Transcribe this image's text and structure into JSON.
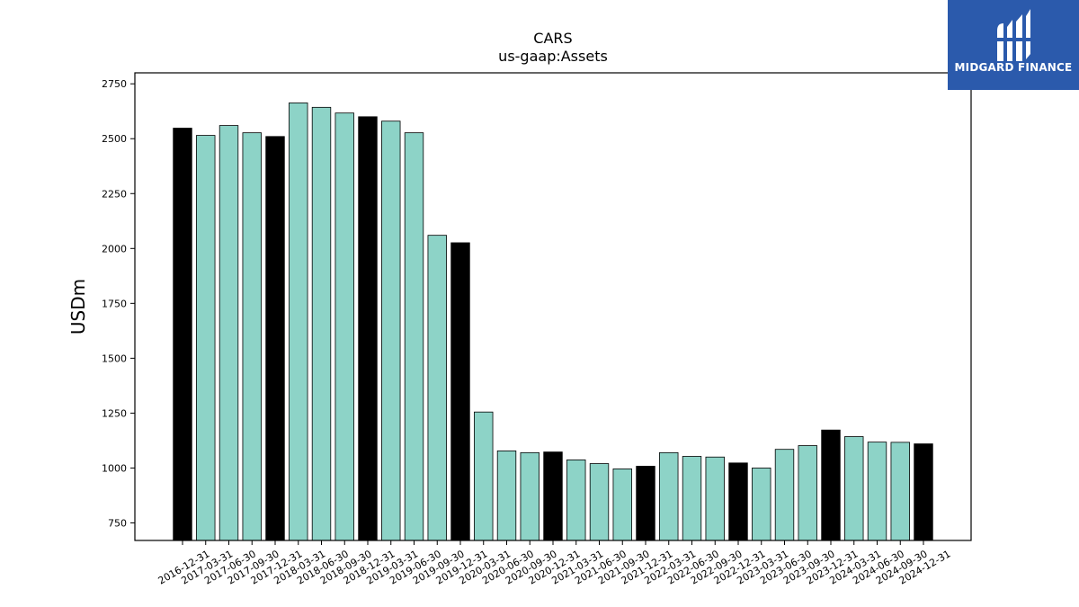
{
  "logo": {
    "text": "MIDGARD FINANCE",
    "bg_color": "#2b5aac"
  },
  "chart_data": {
    "type": "bar",
    "title": "CARS",
    "subtitle": "us-gaap:Assets",
    "xlabel": "",
    "ylabel": "USDm",
    "ylim": [
      670,
      2800
    ],
    "yticks": [
      750,
      1000,
      1250,
      1500,
      1750,
      2000,
      2250,
      2500,
      2750
    ],
    "grid": false,
    "colors": {
      "quarter": "#8dd3c7",
      "year_end": "#000000"
    },
    "categories": [
      "2016-12-31",
      "2017-03-31",
      "2017-06-30",
      "2017-09-30",
      "2017-12-31",
      "2018-03-31",
      "2018-06-30",
      "2018-09-30",
      "2018-12-31",
      "2019-03-31",
      "2019-06-30",
      "2019-09-30",
      "2019-12-31",
      "2020-03-31",
      "2020-06-30",
      "2020-09-30",
      "2020-12-31",
      "2021-03-31",
      "2021-06-30",
      "2021-09-30",
      "2021-12-31",
      "2022-03-31",
      "2022-06-30",
      "2022-09-30",
      "2022-12-31",
      "2023-03-31",
      "2023-06-30",
      "2023-09-30",
      "2023-12-31",
      "2024-03-31",
      "2024-06-30",
      "2024-09-30",
      "2024-12-31"
    ],
    "values": [
      2548,
      2515,
      2560,
      2527,
      2510,
      2663,
      2643,
      2617,
      2600,
      2580,
      2527,
      2060,
      2026,
      1255,
      1078,
      1070,
      1073,
      1037,
      1020,
      996,
      1008,
      1070,
      1053,
      1050,
      1023,
      1000,
      1085,
      1102,
      1173,
      1143,
      1118,
      1117,
      1110
    ]
  }
}
